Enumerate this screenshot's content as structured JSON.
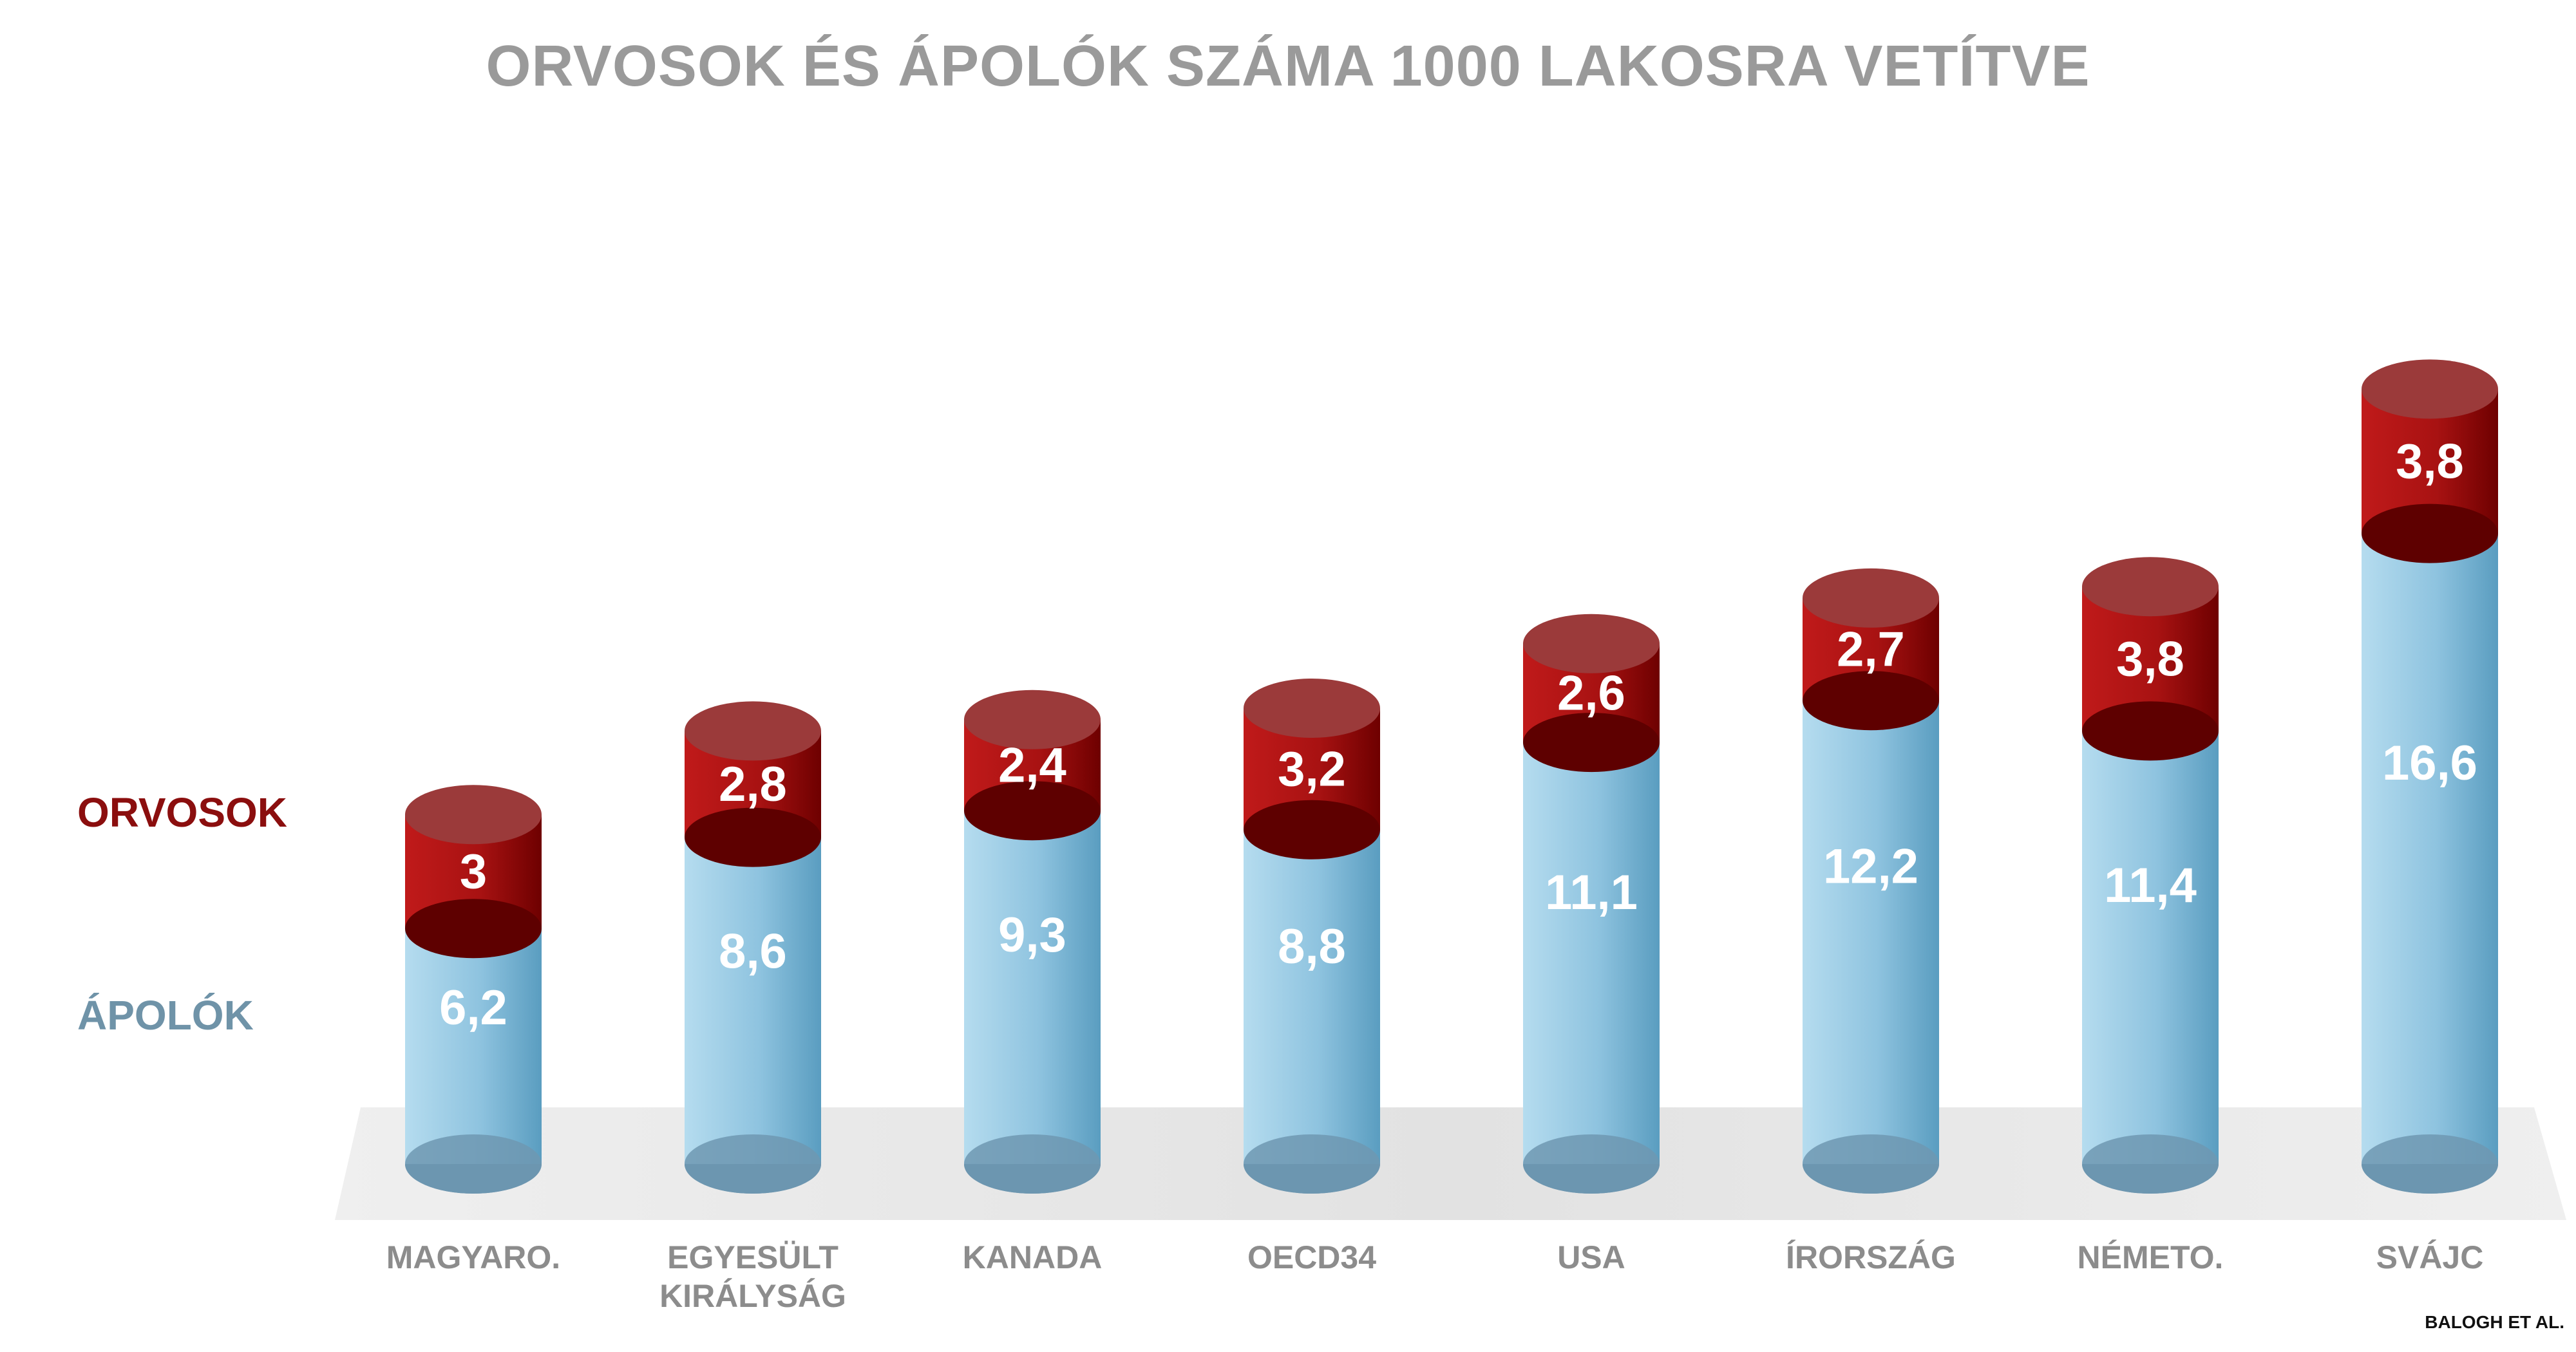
{
  "chart_data": {
    "type": "bar",
    "stacked": true,
    "style": "3d-cylinder",
    "title": "ORVOSOK ÉS ÁPOLÓK SZÁMA 1000 LAKOSRA VETÍTVE",
    "categories": [
      "MAGYARO.",
      "EGYESÜLT KIRÁLYSÁG",
      "KANADA",
      "OECD34",
      "USA",
      "ÍRORSZÁG",
      "NÉMETO.",
      "SVÁJC"
    ],
    "category_lines": [
      [
        "MAGYARO."
      ],
      [
        "EGYESÜLT",
        "KIRÁLYSÁG"
      ],
      [
        "KANADA"
      ],
      [
        "OECD34"
      ],
      [
        "USA"
      ],
      [
        "ÍRORSZÁG"
      ],
      [
        "NÉMETO."
      ],
      [
        "SVÁJC"
      ]
    ],
    "series": [
      {
        "name": "ÁPOLÓK",
        "values": [
          6.2,
          8.6,
          9.3,
          8.8,
          11.1,
          12.2,
          11.4,
          16.6
        ],
        "labels": [
          "6,2",
          "8,6",
          "9,3",
          "8,8",
          "11,1",
          "12,2",
          "11,4",
          "16,6"
        ],
        "color": "#8ec3df",
        "color_dark": "#5a9dc0"
      },
      {
        "name": "ORVOSOK",
        "values": [
          3,
          2.8,
          2.4,
          3.2,
          2.6,
          2.7,
          3.8,
          3.8
        ],
        "labels": [
          "3",
          "2,8",
          "2,4",
          "3,2",
          "2,6",
          "2,7",
          "3,8",
          "3,8"
        ],
        "color": "#a81212",
        "color_dark": "#6e0000"
      }
    ],
    "ylim": [
      0,
      20.4
    ],
    "grid": false,
    "legend_position": "left"
  },
  "legend": {
    "orvosok": "ORVOSOK",
    "apolok": "ÁPOLÓK"
  },
  "source": "BALOGH ET AL."
}
